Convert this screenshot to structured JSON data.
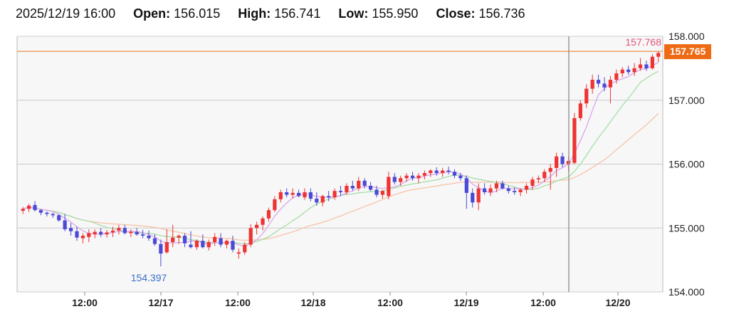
{
  "header": {
    "datetime": "2025/12/19 16:00",
    "open_label": "Open:",
    "open_value": "156.015",
    "high_label": "High:",
    "high_value": "156.741",
    "low_label": "Low:",
    "low_value": "155.950",
    "close_label": "Close:",
    "close_value": "156.736"
  },
  "colors": {
    "up": "#ee3333",
    "down": "#4a4ad6",
    "ma_short": "#d9a6ee",
    "ma_mid": "#a6dea6",
    "ma_long": "#f7c3a8",
    "price_line": "#e87722",
    "price_tag_bg": "#ee6a15",
    "max_label": "#e0557a",
    "min_label": "#3a6fc9",
    "grid": "#cccccc",
    "plot_bg": "#f7f7f7",
    "cursor": "#999999"
  },
  "chart_data": {
    "type": "candlestick",
    "ylim": [
      154.0,
      158.0
    ],
    "y_ticks": [
      "158.000",
      "157.000",
      "156.000",
      "155.000",
      "154.000"
    ],
    "x_ticks": [
      "12:00",
      "12/17",
      "12:00",
      "12/18",
      "12:00",
      "12/19",
      "12:00",
      "12/20"
    ],
    "current_price": "157.765",
    "max_label": "157.768",
    "min_label": "154.397",
    "ohlc": [
      [
        155.27,
        155.33,
        155.22,
        155.3
      ],
      [
        155.3,
        155.38,
        155.25,
        155.35
      ],
      [
        155.36,
        155.42,
        155.26,
        155.28
      ],
      [
        155.28,
        155.3,
        155.2,
        155.24
      ],
      [
        155.24,
        155.26,
        155.18,
        155.22
      ],
      [
        155.22,
        155.24,
        155.16,
        155.2
      ],
      [
        155.2,
        155.22,
        155.1,
        155.12
      ],
      [
        155.12,
        155.22,
        154.95,
        154.98
      ],
      [
        155.0,
        155.08,
        154.88,
        154.95
      ],
      [
        154.95,
        155.02,
        154.8,
        154.85
      ],
      [
        154.84,
        154.92,
        154.76,
        154.88
      ],
      [
        154.86,
        154.98,
        154.78,
        154.92
      ],
      [
        154.9,
        154.98,
        154.84,
        154.94
      ],
      [
        154.94,
        155.0,
        154.86,
        154.9
      ],
      [
        154.9,
        154.97,
        154.85,
        154.93
      ],
      [
        154.93,
        155.02,
        154.86,
        154.96
      ],
      [
        154.96,
        155.05,
        154.9,
        155.0
      ],
      [
        155.0,
        155.05,
        154.9,
        154.92
      ],
      [
        154.92,
        154.98,
        154.86,
        154.94
      ],
      [
        154.94,
        155.0,
        154.88,
        154.9
      ],
      [
        154.9,
        154.97,
        154.84,
        154.88
      ],
      [
        154.88,
        154.96,
        154.8,
        154.84
      ],
      [
        154.84,
        154.9,
        154.72,
        154.75
      ],
      [
        154.75,
        154.82,
        154.4,
        154.6
      ],
      [
        154.62,
        154.98,
        154.6,
        154.78
      ],
      [
        154.78,
        155.05,
        154.7,
        154.85
      ],
      [
        154.85,
        154.9,
        154.75,
        154.88
      ],
      [
        154.88,
        154.92,
        154.7,
        154.76
      ],
      [
        154.74,
        154.95,
        154.68,
        154.7
      ],
      [
        154.7,
        154.82,
        154.66,
        154.8
      ],
      [
        154.8,
        154.9,
        154.68,
        154.7
      ],
      [
        154.7,
        154.82,
        154.65,
        154.78
      ],
      [
        154.78,
        154.92,
        154.72,
        154.86
      ],
      [
        154.84,
        154.92,
        154.7,
        154.74
      ],
      [
        154.74,
        154.82,
        154.68,
        154.8
      ],
      [
        154.8,
        154.88,
        154.62,
        154.66
      ],
      [
        154.6,
        154.68,
        154.52,
        154.62
      ],
      [
        154.62,
        154.78,
        154.58,
        154.74
      ],
      [
        154.74,
        155.06,
        154.7,
        155.0
      ],
      [
        155.0,
        155.1,
        154.9,
        155.05
      ],
      [
        155.05,
        155.18,
        154.96,
        155.15
      ],
      [
        155.15,
        155.32,
        155.1,
        155.28
      ],
      [
        155.28,
        155.5,
        155.25,
        155.45
      ],
      [
        155.45,
        155.6,
        155.4,
        155.56
      ],
      [
        155.56,
        155.62,
        155.48,
        155.52
      ],
      [
        155.52,
        155.62,
        155.46,
        155.55
      ],
      [
        155.55,
        155.6,
        155.48,
        155.5
      ],
      [
        155.48,
        155.62,
        155.44,
        155.56
      ],
      [
        155.56,
        155.62,
        155.42,
        155.46
      ],
      [
        155.46,
        155.56,
        155.35,
        155.4
      ],
      [
        155.4,
        155.52,
        155.34,
        155.5
      ],
      [
        155.5,
        155.58,
        155.42,
        155.48
      ],
      [
        155.48,
        155.62,
        155.44,
        155.58
      ],
      [
        155.58,
        155.66,
        155.5,
        155.56
      ],
      [
        155.56,
        155.7,
        155.52,
        155.66
      ],
      [
        155.66,
        155.74,
        155.58,
        155.62
      ],
      [
        155.62,
        155.8,
        155.58,
        155.74
      ],
      [
        155.74,
        155.78,
        155.62,
        155.66
      ],
      [
        155.66,
        155.72,
        155.58,
        155.6
      ],
      [
        155.6,
        155.66,
        155.48,
        155.52
      ],
      [
        155.52,
        155.6,
        155.46,
        155.58
      ],
      [
        155.5,
        155.88,
        155.45,
        155.8
      ],
      [
        155.8,
        155.86,
        155.68,
        155.72
      ],
      [
        155.72,
        155.82,
        155.66,
        155.78
      ],
      [
        155.78,
        155.86,
        155.72,
        155.82
      ],
      [
        155.82,
        155.88,
        155.74,
        155.78
      ],
      [
        155.78,
        155.86,
        155.7,
        155.82
      ],
      [
        155.82,
        155.9,
        155.76,
        155.86
      ],
      [
        155.86,
        155.92,
        155.8,
        155.9
      ],
      [
        155.9,
        155.95,
        155.82,
        155.86
      ],
      [
        155.86,
        155.94,
        155.8,
        155.9
      ],
      [
        155.9,
        155.96,
        155.84,
        155.88
      ],
      [
        155.88,
        155.92,
        155.78,
        155.82
      ],
      [
        155.82,
        155.86,
        155.74,
        155.78
      ],
      [
        155.78,
        155.82,
        155.3,
        155.55
      ],
      [
        155.55,
        155.62,
        155.32,
        155.4
      ],
      [
        155.4,
        155.7,
        155.28,
        155.62
      ],
      [
        155.62,
        155.7,
        155.52,
        155.56
      ],
      [
        155.56,
        155.68,
        155.5,
        155.62
      ],
      [
        155.62,
        155.74,
        155.56,
        155.7
      ],
      [
        155.7,
        155.74,
        155.6,
        155.62
      ],
      [
        155.62,
        155.66,
        155.54,
        155.58
      ],
      [
        155.58,
        155.64,
        155.52,
        155.56
      ],
      [
        155.56,
        155.62,
        155.5,
        155.6
      ],
      [
        155.6,
        155.7,
        155.54,
        155.66
      ],
      [
        155.66,
        155.8,
        155.6,
        155.76
      ],
      [
        155.76,
        155.82,
        155.7,
        155.78
      ],
      [
        155.78,
        155.92,
        155.72,
        155.88
      ],
      [
        155.88,
        156.0,
        155.6,
        155.94
      ],
      [
        155.94,
        156.18,
        155.8,
        156.12
      ],
      [
        156.12,
        156.18,
        155.95,
        156.0
      ],
      [
        156.0,
        156.12,
        155.88,
        156.05
      ],
      [
        156.02,
        156.8,
        156.0,
        156.72
      ],
      [
        156.72,
        157.0,
        156.68,
        156.95
      ],
      [
        156.95,
        157.25,
        156.88,
        157.18
      ],
      [
        157.18,
        157.4,
        157.1,
        157.32
      ],
      [
        157.32,
        157.4,
        157.2,
        157.26
      ],
      [
        157.26,
        157.36,
        157.14,
        157.2
      ],
      [
        157.2,
        157.38,
        156.95,
        157.32
      ],
      [
        157.32,
        157.48,
        157.26,
        157.42
      ],
      [
        157.42,
        157.52,
        157.36,
        157.48
      ],
      [
        157.48,
        157.54,
        157.4,
        157.44
      ],
      [
        157.44,
        157.58,
        157.38,
        157.5
      ],
      [
        157.5,
        157.66,
        157.46,
        157.56
      ],
      [
        157.56,
        157.62,
        157.46,
        157.5
      ],
      [
        157.5,
        157.72,
        157.48,
        157.68
      ],
      [
        157.68,
        157.77,
        157.6,
        157.74
      ]
    ]
  }
}
